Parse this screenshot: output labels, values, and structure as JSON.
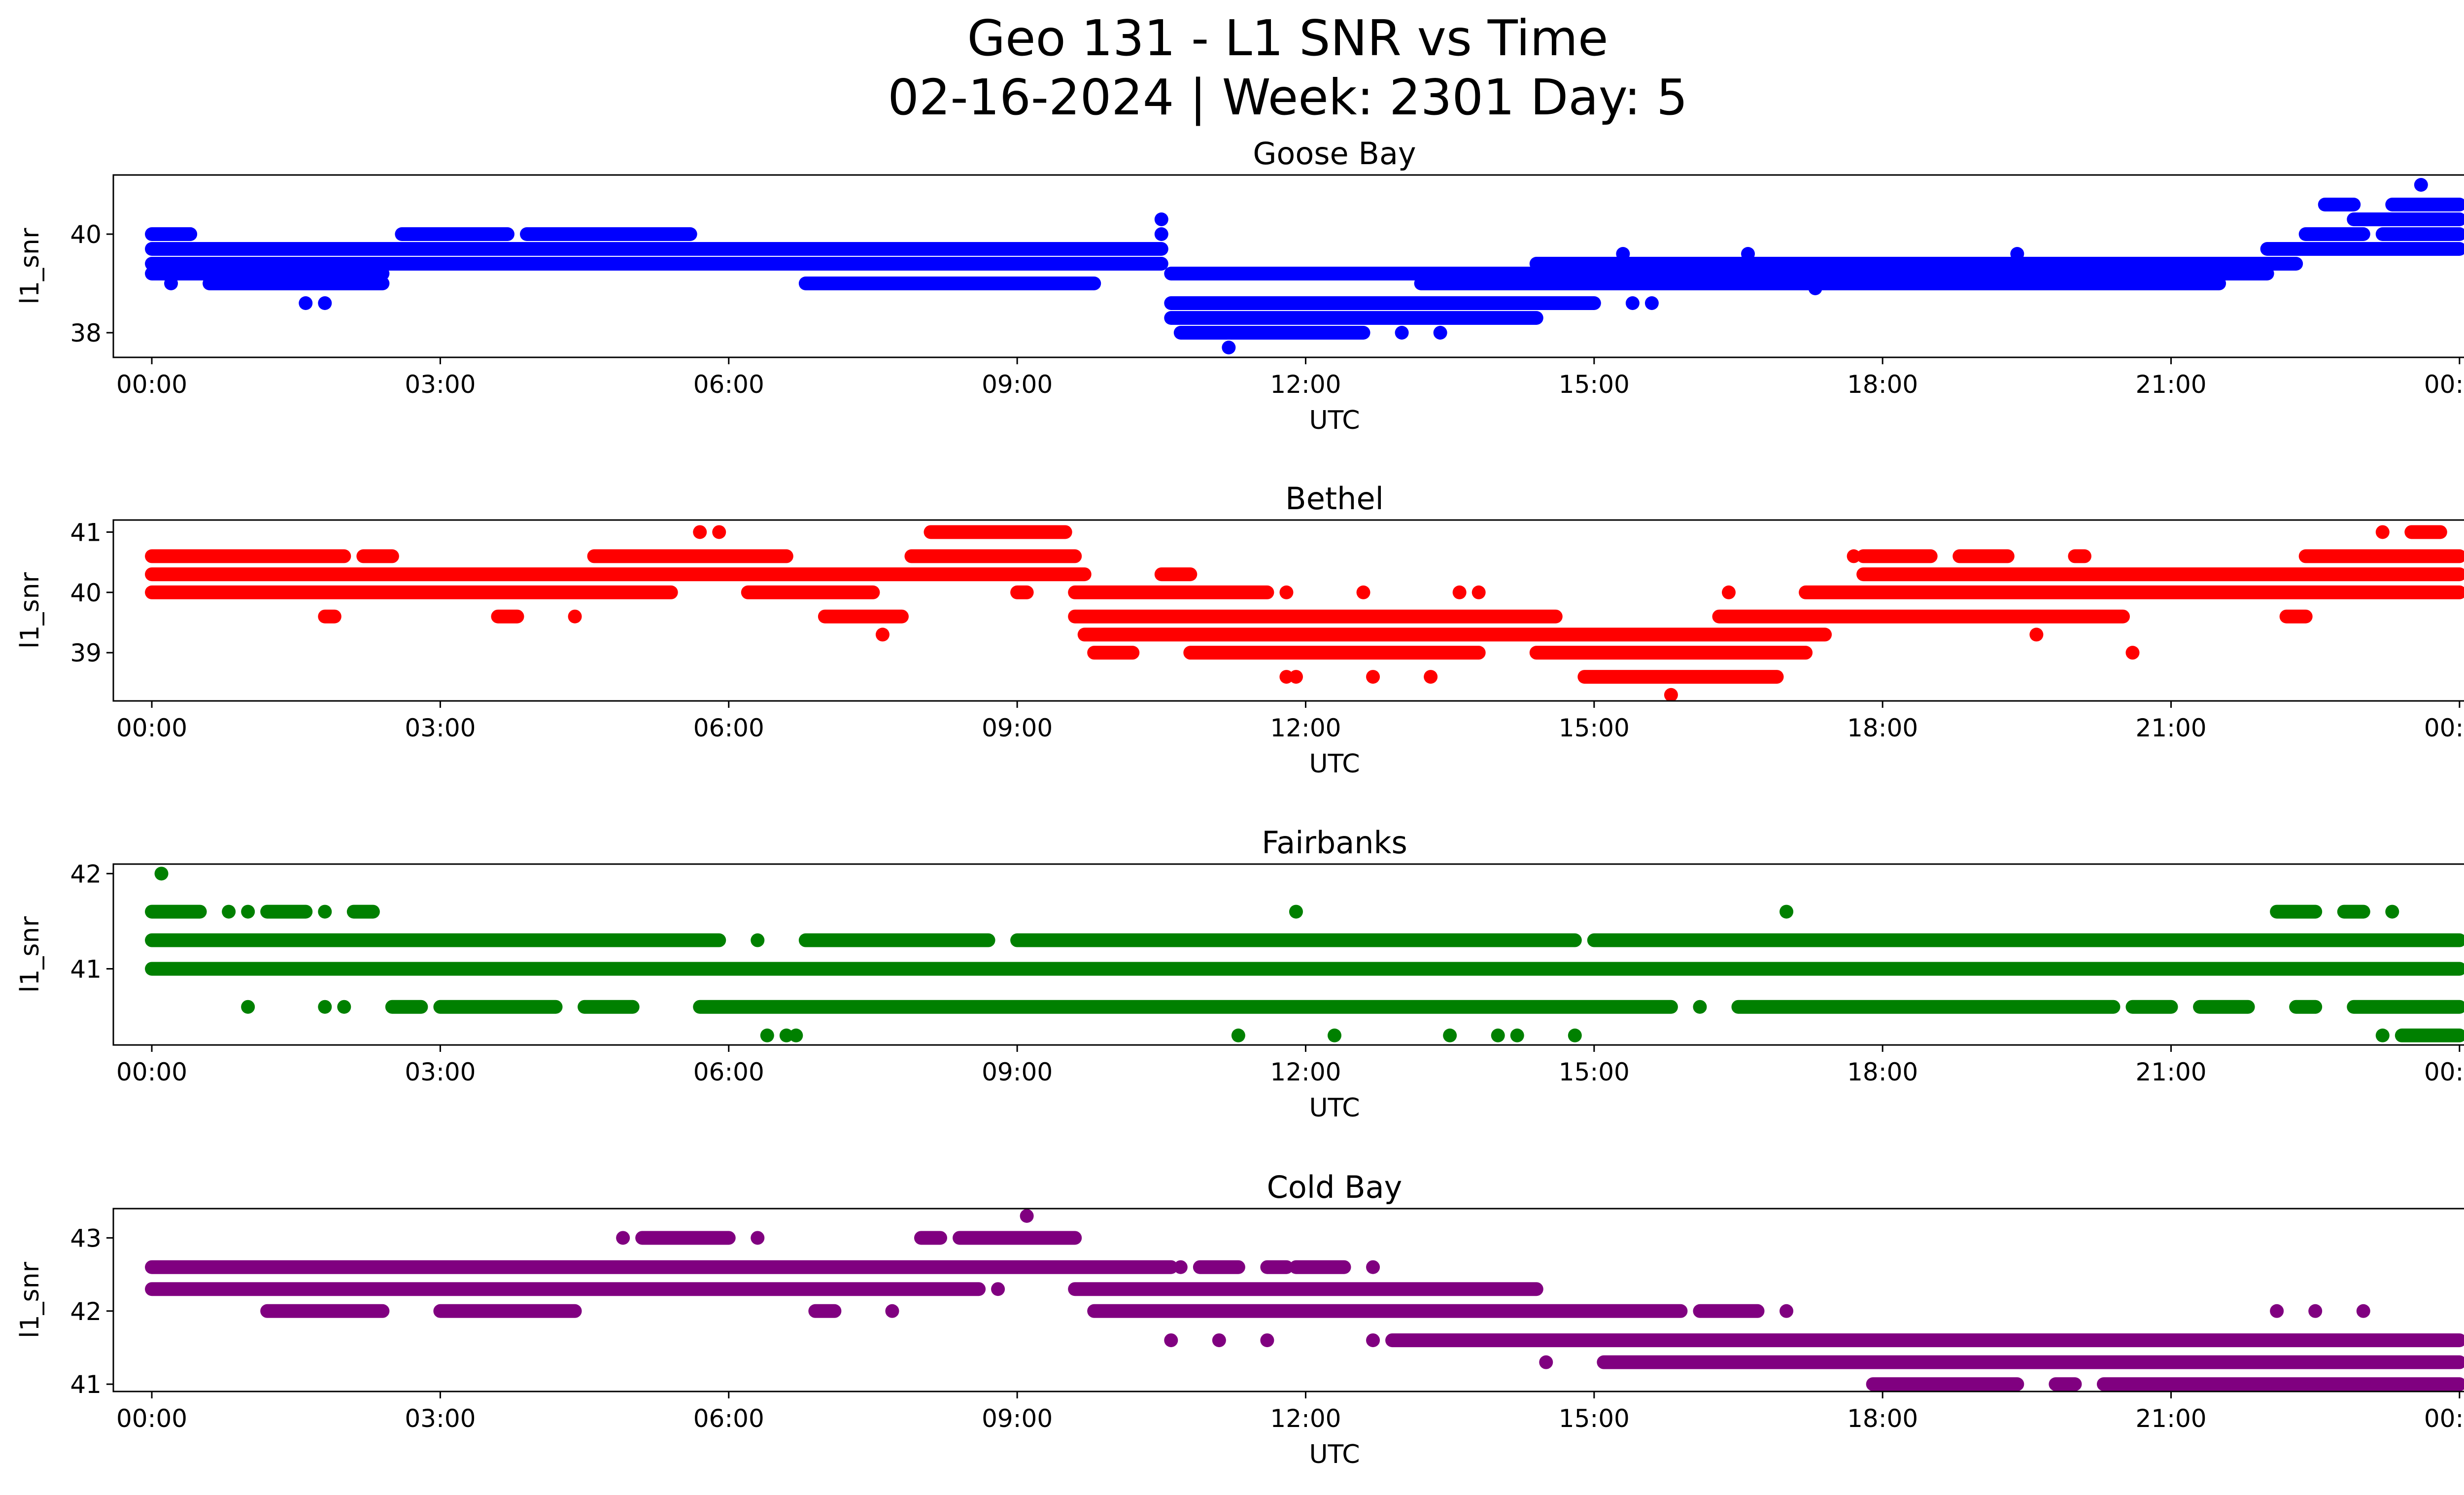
{
  "figure": {
    "title_line1": "Geo 131 - L1 SNR vs Time",
    "title_line2": "02-16-2024 | Week: 2301 Day: 5"
  },
  "chart_data": [
    {
      "type": "scatter",
      "title": "Goose Bay",
      "xlabel": "UTC",
      "ylabel": "l1_snr",
      "color": "#0000ff",
      "xlim": [
        -0.4,
        25.0
      ],
      "ylim": [
        37.5,
        41.2
      ],
      "xticks": [
        0,
        3,
        6,
        9,
        12,
        15,
        18,
        21,
        24
      ],
      "xtick_labels": [
        "00:00",
        "03:00",
        "06:00",
        "09:00",
        "12:00",
        "15:00",
        "18:00",
        "21:00",
        "00:00"
      ],
      "yticks": [
        38,
        40
      ],
      "bands": [
        {
          "y": 40.0,
          "ranges": [
            [
              0.0,
              0.4
            ],
            [
              2.6,
              3.7
            ],
            [
              3.9,
              5.6
            ],
            [
              10.5,
              10.5
            ],
            [
              22.4,
              23.0
            ],
            [
              23.2,
              24.0
            ]
          ]
        },
        {
          "y": 39.7,
          "ranges": [
            [
              0.0,
              10.5
            ],
            [
              22.0,
              24.0
            ]
          ]
        },
        {
          "y": 39.4,
          "ranges": [
            [
              0.0,
              10.5
            ],
            [
              14.4,
              22.3
            ]
          ]
        },
        {
          "y": 39.2,
          "ranges": [
            [
              0.0,
              2.4
            ],
            [
              10.6,
              22.0
            ]
          ]
        },
        {
          "y": 39.0,
          "ranges": [
            [
              0.6,
              2.4
            ],
            [
              6.8,
              9.8
            ],
            [
              13.2,
              21.5
            ]
          ]
        },
        {
          "y": 38.6,
          "ranges": [
            [
              10.6,
              14.6
            ],
            [
              14.6,
              15.0
            ]
          ]
        },
        {
          "y": 38.3,
          "ranges": [
            [
              10.6,
              14.4
            ]
          ]
        },
        {
          "y": 38.0,
          "ranges": [
            [
              10.7,
              12.6
            ]
          ]
        },
        {
          "y": 40.3,
          "ranges": [
            [
              22.9,
              24.0
            ]
          ]
        },
        {
          "y": 40.6,
          "ranges": [
            [
              22.6,
              22.9
            ],
            [
              23.3,
              24.0
            ]
          ]
        }
      ],
      "points": [
        [
          0.2,
          40.0
        ],
        [
          0.3,
          40.0
        ],
        [
          0.4,
          40.0
        ],
        [
          1.6,
          38.6
        ],
        [
          1.8,
          38.6
        ],
        [
          0.2,
          39.0
        ],
        [
          15.4,
          38.6
        ],
        [
          15.6,
          38.6
        ],
        [
          10.5,
          40.3
        ],
        [
          13.0,
          38.0
        ],
        [
          13.4,
          38.0
        ],
        [
          11.2,
          37.7
        ],
        [
          23.6,
          41.0
        ],
        [
          23.2,
          40.3
        ],
        [
          15.3,
          39.6
        ],
        [
          16.6,
          39.6
        ],
        [
          17.3,
          38.9
        ],
        [
          21.1,
          39.0
        ],
        [
          19.4,
          39.6
        ]
      ]
    },
    {
      "type": "scatter",
      "title": "Bethel",
      "xlabel": "UTC",
      "ylabel": "l1_snr",
      "color": "#ff0000",
      "xlim": [
        -0.4,
        25.0
      ],
      "ylim": [
        38.2,
        41.2
      ],
      "xticks": [
        0,
        3,
        6,
        9,
        12,
        15,
        18,
        21,
        24
      ],
      "xtick_labels": [
        "00:00",
        "03:00",
        "06:00",
        "09:00",
        "12:00",
        "15:00",
        "18:00",
        "21:00",
        "00:00"
      ],
      "yticks": [
        39,
        40,
        41
      ],
      "bands": [
        {
          "y": 40.6,
          "ranges": [
            [
              0.0,
              2.0
            ],
            [
              2.2,
              2.5
            ],
            [
              4.6,
              6.6
            ],
            [
              7.9,
              9.6
            ],
            [
              17.8,
              18.5
            ],
            [
              18.8,
              19.3
            ],
            [
              20.0,
              20.1
            ],
            [
              22.4,
              24.0
            ]
          ]
        },
        {
          "y": 40.3,
          "ranges": [
            [
              0.0,
              9.7
            ],
            [
              10.5,
              10.8
            ],
            [
              17.8,
              24.0
            ]
          ]
        },
        {
          "y": 40.0,
          "ranges": [
            [
              0.0,
              5.4
            ],
            [
              6.2,
              7.5
            ],
            [
              9.0,
              9.1
            ],
            [
              9.6,
              11.6
            ],
            [
              17.2,
              24.0
            ]
          ]
        },
        {
          "y": 39.6,
          "ranges": [
            [
              1.8,
              1.9
            ],
            [
              3.6,
              3.8
            ],
            [
              7.0,
              7.8
            ],
            [
              9.6,
              14.6
            ],
            [
              16.3,
              20.5
            ],
            [
              22.2,
              22.4
            ]
          ]
        },
        {
          "y": 39.3,
          "ranges": [
            [
              9.7,
              17.4
            ]
          ]
        },
        {
          "y": 39.0,
          "ranges": [
            [
              9.8,
              10.2
            ],
            [
              10.8,
              13.8
            ],
            [
              14.4,
              17.2
            ]
          ]
        },
        {
          "y": 38.6,
          "ranges": [
            [
              14.9,
              16.9
            ]
          ]
        },
        {
          "y": 41.0,
          "ranges": [
            [
              8.1,
              9.5
            ],
            [
              23.5,
              23.8
            ]
          ]
        }
      ],
      "points": [
        [
          4.4,
          39.6
        ],
        [
          5.7,
          41.0
        ],
        [
          5.9,
          41.0
        ],
        [
          7.6,
          39.3
        ],
        [
          11.8,
          38.6
        ],
        [
          11.9,
          38.6
        ],
        [
          12.7,
          38.6
        ],
        [
          13.3,
          38.6
        ],
        [
          15.8,
          38.3
        ],
        [
          19.6,
          39.3
        ],
        [
          20.6,
          39.0
        ],
        [
          16.4,
          40.0
        ],
        [
          17.7,
          40.6
        ],
        [
          23.2,
          41.0
        ],
        [
          13.6,
          40.0
        ],
        [
          13.8,
          40.0
        ],
        [
          11.8,
          40.0
        ],
        [
          12.6,
          40.0
        ]
      ]
    },
    {
      "type": "scatter",
      "title": "Fairbanks",
      "xlabel": "UTC",
      "ylabel": "l1_snr",
      "color": "#008000",
      "xlim": [
        -0.4,
        25.0
      ],
      "ylim": [
        40.2,
        42.1
      ],
      "xticks": [
        0,
        3,
        6,
        9,
        12,
        15,
        18,
        21,
        24
      ],
      "xtick_labels": [
        "00:00",
        "03:00",
        "06:00",
        "09:00",
        "12:00",
        "15:00",
        "18:00",
        "21:00",
        "00:00"
      ],
      "yticks": [
        41,
        42
      ],
      "bands": [
        {
          "y": 41.0,
          "ranges": [
            [
              0.0,
              24.0
            ]
          ]
        },
        {
          "y": 41.3,
          "ranges": [
            [
              0.0,
              5.9
            ],
            [
              6.8,
              8.7
            ],
            [
              9.0,
              14.8
            ],
            [
              15.0,
              24.0
            ]
          ]
        },
        {
          "y": 41.6,
          "ranges": [
            [
              0.0,
              0.5
            ],
            [
              1.2,
              1.6
            ],
            [
              2.1,
              2.3
            ],
            [
              22.1,
              22.5
            ],
            [
              22.8,
              23.0
            ]
          ]
        },
        {
          "y": 40.6,
          "ranges": [
            [
              2.5,
              2.8
            ],
            [
              3.0,
              4.2
            ],
            [
              4.5,
              5.0
            ],
            [
              5.7,
              15.8
            ],
            [
              16.5,
              20.4
            ],
            [
              20.6,
              21.0
            ],
            [
              21.3,
              21.8
            ],
            [
              22.3,
              22.5
            ],
            [
              22.9,
              24.0
            ]
          ]
        },
        {
          "y": 40.3,
          "ranges": [
            [
              23.4,
              24.0
            ]
          ]
        }
      ],
      "points": [
        [
          0.1,
          42.0
        ],
        [
          0.8,
          41.6
        ],
        [
          1.0,
          41.6
        ],
        [
          1.8,
          41.6
        ],
        [
          11.9,
          41.6
        ],
        [
          17.0,
          41.6
        ],
        [
          23.3,
          41.6
        ],
        [
          1.0,
          40.6
        ],
        [
          1.8,
          40.6
        ],
        [
          2.0,
          40.6
        ],
        [
          6.4,
          40.3
        ],
        [
          6.7,
          40.3
        ],
        [
          6.6,
          40.3
        ],
        [
          11.3,
          40.3
        ],
        [
          12.3,
          40.3
        ],
        [
          13.5,
          40.3
        ],
        [
          14.0,
          40.3
        ],
        [
          14.2,
          40.3
        ],
        [
          14.8,
          40.3
        ],
        [
          6.3,
          41.3
        ],
        [
          16.1,
          40.6
        ],
        [
          23.2,
          40.3
        ]
      ]
    },
    {
      "type": "scatter",
      "title": "Cold Bay",
      "xlabel": "UTC",
      "ylabel": "l1_snr",
      "color": "#800080",
      "xlim": [
        -0.4,
        25.0
      ],
      "ylim": [
        40.9,
        43.4
      ],
      "xticks": [
        0,
        3,
        6,
        9,
        12,
        15,
        18,
        21,
        24
      ],
      "xtick_labels": [
        "00:00",
        "03:00",
        "06:00",
        "09:00",
        "12:00",
        "15:00",
        "18:00",
        "21:00",
        "00:00"
      ],
      "yticks": [
        41,
        42,
        43
      ],
      "bands": [
        {
          "y": 42.6,
          "ranges": [
            [
              0.0,
              10.6
            ],
            [
              10.9,
              11.3
            ],
            [
              11.6,
              11.8
            ],
            [
              11.9,
              12.4
            ]
          ]
        },
        {
          "y": 42.3,
          "ranges": [
            [
              0.0,
              8.6
            ],
            [
              9.6,
              14.4
            ]
          ]
        },
        {
          "y": 43.0,
          "ranges": [
            [
              5.1,
              6.0
            ],
            [
              8.0,
              8.2
            ],
            [
              8.4,
              9.6
            ]
          ]
        },
        {
          "y": 42.0,
          "ranges": [
            [
              1.2,
              2.4
            ],
            [
              3.0,
              4.4
            ],
            [
              6.9,
              7.1
            ],
            [
              9.8,
              15.9
            ],
            [
              16.1,
              16.7
            ]
          ]
        },
        {
          "y": 41.6,
          "ranges": [
            [
              12.9,
              24.0
            ]
          ]
        },
        {
          "y": 41.3,
          "ranges": [
            [
              15.1,
              24.0
            ]
          ]
        },
        {
          "y": 41.0,
          "ranges": [
            [
              17.9,
              19.4
            ],
            [
              19.8,
              20.0
            ],
            [
              20.3,
              24.0
            ]
          ]
        }
      ],
      "points": [
        [
          4.9,
          43.0
        ],
        [
          6.3,
          43.0
        ],
        [
          9.1,
          43.3
        ],
        [
          8.8,
          42.3
        ],
        [
          7.7,
          42.0
        ],
        [
          10.6,
          41.6
        ],
        [
          11.1,
          41.6
        ],
        [
          11.6,
          41.6
        ],
        [
          12.7,
          41.6
        ],
        [
          14.5,
          41.3
        ],
        [
          17.0,
          42.0
        ],
        [
          22.1,
          42.0
        ],
        [
          22.5,
          42.0
        ],
        [
          23.0,
          42.0
        ],
        [
          10.7,
          42.6
        ],
        [
          12.7,
          42.6
        ]
      ]
    }
  ]
}
